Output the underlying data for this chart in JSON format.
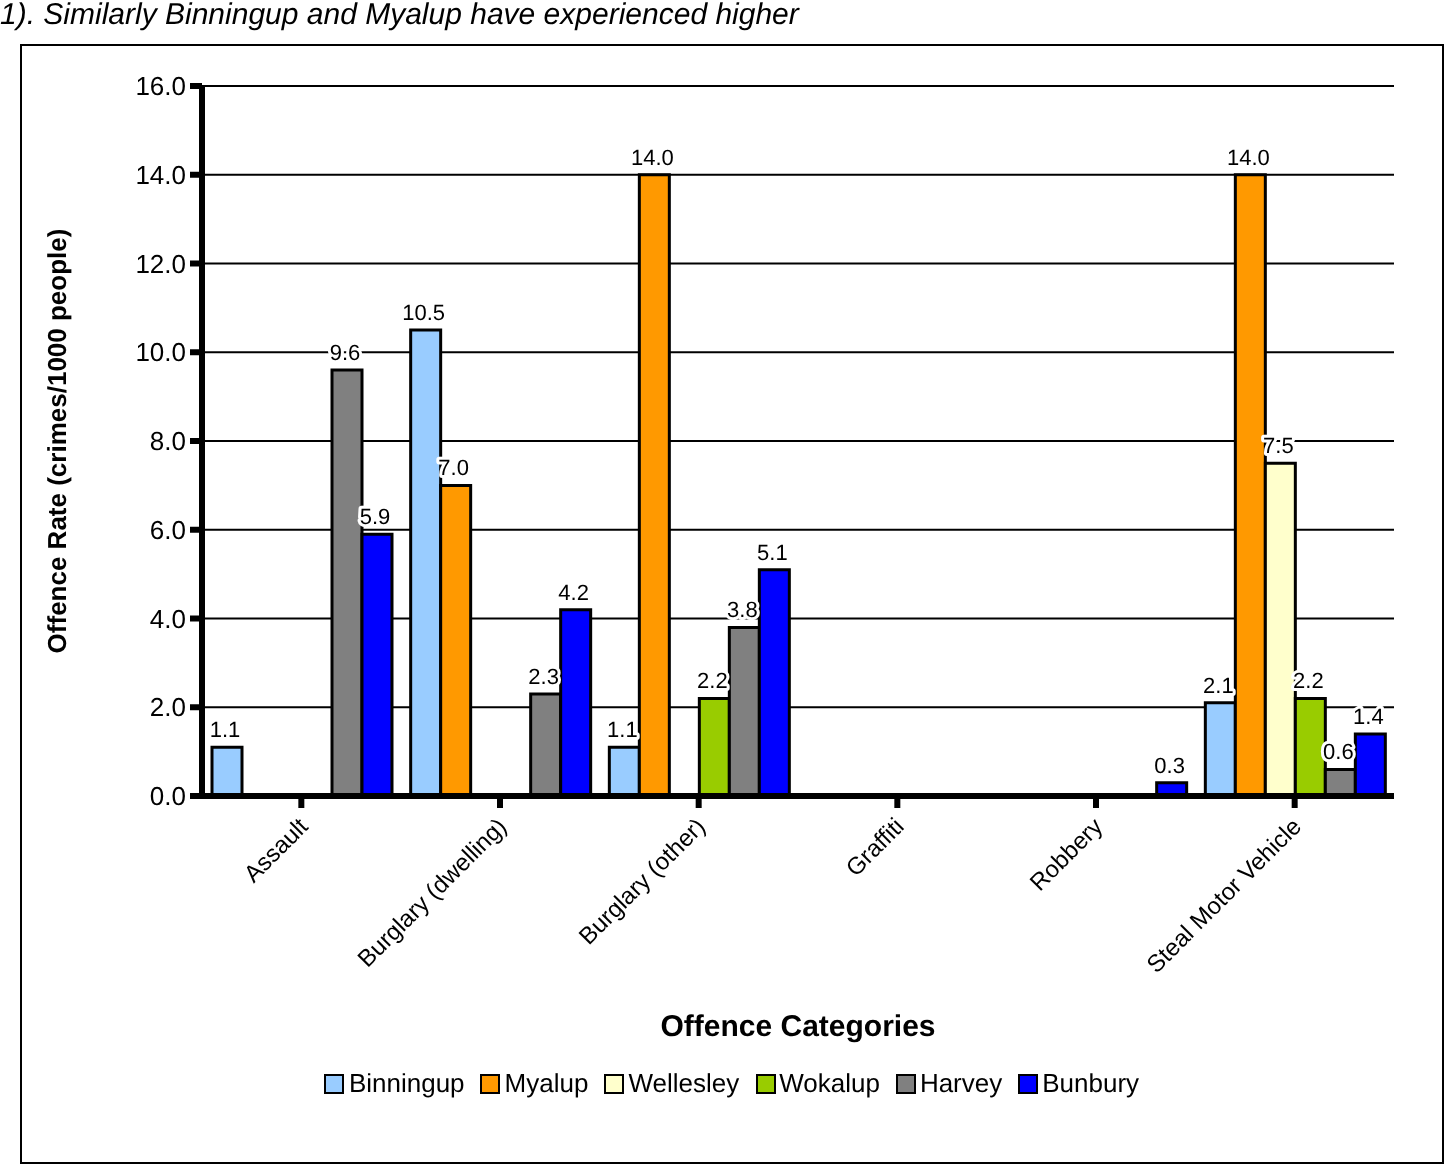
{
  "chart_data": {
    "type": "bar",
    "annotations": [
      "1). Similarly Binningup and Myalup have experienced higher"
    ],
    "xlabel": "Offence Categories",
    "ylabel": "Offence Rate (crimes/1000 people)",
    "categories": [
      "Assault",
      "Burglary (dwelling)",
      "Burglary (other)",
      "Graffiti",
      "Robbery",
      "Steal Motor Vehicle"
    ],
    "series": [
      {
        "name": "Binningup",
        "color": "#99ccff",
        "values": [
          1.1,
          10.5,
          1.1,
          0,
          0,
          2.1
        ],
        "value_labels": [
          "1.1",
          "10.5",
          "1.1",
          null,
          null,
          "2.1"
        ]
      },
      {
        "name": "Myalup",
        "color": "#ff9900",
        "values": [
          0,
          7.0,
          14.0,
          0,
          0,
          14.0
        ],
        "value_labels": [
          null,
          "7.0",
          "14.0",
          null,
          null,
          "14.0"
        ]
      },
      {
        "name": "Wellesley",
        "color": "#ffffcc",
        "values": [
          0,
          0,
          0,
          0,
          0,
          7.5
        ],
        "value_labels": [
          null,
          null,
          null,
          null,
          null,
          "7.5"
        ]
      },
      {
        "name": "Wokalup",
        "color": "#99cc00",
        "values": [
          0,
          0,
          2.2,
          0,
          0,
          2.2
        ],
        "value_labels": [
          null,
          null,
          "2.2",
          null,
          null,
          "2.2"
        ]
      },
      {
        "name": "Harvey",
        "color": "#808080",
        "values": [
          9.6,
          2.3,
          3.8,
          0,
          0,
          0.6
        ],
        "value_labels": [
          "9.6",
          "2.3",
          "3.8",
          null,
          null,
          "0.6"
        ]
      },
      {
        "name": "Bunbury",
        "color": "#0000ff",
        "values": [
          5.9,
          4.2,
          5.1,
          0,
          0.3,
          1.4
        ],
        "value_labels": [
          "5.9",
          "4.2",
          "5.1",
          null,
          "0.3",
          "1.4"
        ]
      }
    ],
    "ylim": [
      0,
      16
    ],
    "yticks": [
      {
        "value": 0,
        "label": "0.0"
      },
      {
        "value": 2,
        "label": "2.0"
      },
      {
        "value": 4,
        "label": "4.0"
      },
      {
        "value": 6,
        "label": "6.0"
      },
      {
        "value": 8,
        "label": "8.0"
      },
      {
        "value": 10,
        "label": "10.0"
      },
      {
        "value": 12,
        "label": "12.0"
      },
      {
        "value": 14,
        "label": "14.0"
      },
      {
        "value": 16,
        "label": "16.0"
      }
    ],
    "grid": "y",
    "legend": "bottom"
  }
}
